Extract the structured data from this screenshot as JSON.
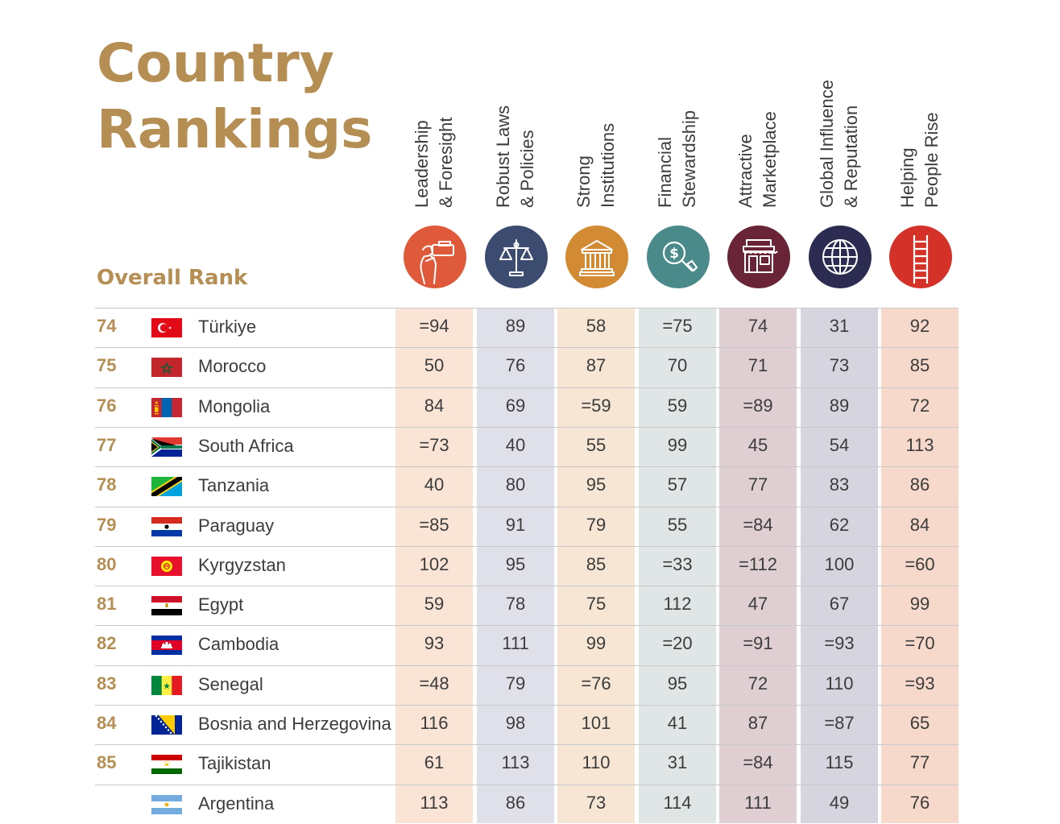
{
  "title": {
    "line1": "Country",
    "line2": "Rankings"
  },
  "overall_rank_label": "Overall Rank",
  "colors": {
    "gold": "#b58e54",
    "col_bands": [
      "#f9e4d6",
      "#e0e0ea",
      "#f6e6d3",
      "#e0e6e6",
      "#e0cfd2",
      "#d6d5df",
      "#f6d9ca"
    ],
    "icon_colors": [
      "#de5a3a",
      "#3c4c70",
      "#d28b32",
      "#4a8a8a",
      "#6a2438",
      "#2c2c52",
      "#d43228"
    ]
  },
  "columns": [
    {
      "line1": "Leadership",
      "line2": "& Foresight",
      "icon": "binoculars-person-icon"
    },
    {
      "line1": "Robust Laws",
      "line2": "& Policies",
      "icon": "scales-icon"
    },
    {
      "line1": "Strong",
      "line2": "Institutions",
      "icon": "institution-building-icon"
    },
    {
      "line1": "Financial",
      "line2": "Stewardship",
      "icon": "dollar-magnifier-icon"
    },
    {
      "line1": "Attractive",
      "line2": "Marketplace",
      "icon": "storefront-icon"
    },
    {
      "line1": "Global Influence",
      "line2": "& Reputation",
      "icon": "globe-icon"
    },
    {
      "line1": "Helping",
      "line2": "People Rise",
      "icon": "ladder-icon"
    }
  ],
  "rows": [
    {
      "rank": "74",
      "country": "Türkiye",
      "flag": "turkey-flag",
      "values": [
        "=94",
        "89",
        "58",
        "=75",
        "74",
        "31",
        "92"
      ]
    },
    {
      "rank": "75",
      "country": "Morocco",
      "flag": "morocco-flag",
      "values": [
        "50",
        "76",
        "87",
        "70",
        "71",
        "73",
        "85"
      ]
    },
    {
      "rank": "76",
      "country": "Mongolia",
      "flag": "mongolia-flag",
      "values": [
        "84",
        "69",
        "=59",
        "59",
        "=89",
        "89",
        "72"
      ]
    },
    {
      "rank": "77",
      "country": "South Africa",
      "flag": "south-africa-flag",
      "values": [
        "=73",
        "40",
        "55",
        "99",
        "45",
        "54",
        "113"
      ]
    },
    {
      "rank": "78",
      "country": "Tanzania",
      "flag": "tanzania-flag",
      "values": [
        "40",
        "80",
        "95",
        "57",
        "77",
        "83",
        "86"
      ]
    },
    {
      "rank": "79",
      "country": "Paraguay",
      "flag": "paraguay-flag",
      "values": [
        "=85",
        "91",
        "79",
        "55",
        "=84",
        "62",
        "84"
      ]
    },
    {
      "rank": "80",
      "country": "Kyrgyzstan",
      "flag": "kyrgyzstan-flag",
      "values": [
        "102",
        "95",
        "85",
        "=33",
        "=112",
        "100",
        "=60"
      ]
    },
    {
      "rank": "81",
      "country": "Egypt",
      "flag": "egypt-flag",
      "values": [
        "59",
        "78",
        "75",
        "112",
        "47",
        "67",
        "99"
      ]
    },
    {
      "rank": "82",
      "country": "Cambodia",
      "flag": "cambodia-flag",
      "values": [
        "93",
        "111",
        "99",
        "=20",
        "=91",
        "=93",
        "=70"
      ]
    },
    {
      "rank": "83",
      "country": "Senegal",
      "flag": "senegal-flag",
      "values": [
        "=48",
        "79",
        "=76",
        "95",
        "72",
        "110",
        "=93"
      ]
    },
    {
      "rank": "84",
      "country": "Bosnia and Herzegovina",
      "flag": "bosnia-flag",
      "values": [
        "116",
        "98",
        "101",
        "41",
        "87",
        "=87",
        "65"
      ]
    },
    {
      "rank": "85",
      "country": "Tajikistan",
      "flag": "tajikistan-flag",
      "values": [
        "61",
        "113",
        "110",
        "31",
        "=84",
        "115",
        "77"
      ]
    },
    {
      "rank": "",
      "country": "Argentina",
      "flag": "argentina-flag",
      "values": [
        "113",
        "86",
        "73",
        "114",
        "111",
        "49",
        "76"
      ]
    }
  ]
}
